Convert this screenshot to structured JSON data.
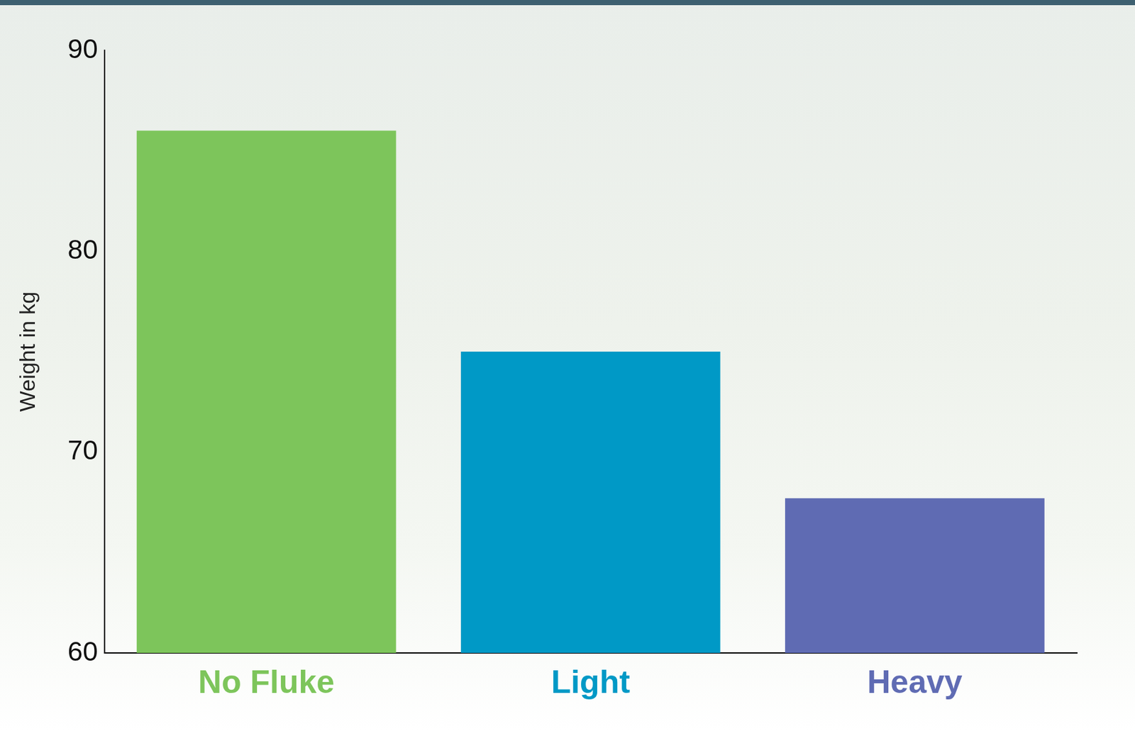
{
  "chart_data": {
    "type": "bar",
    "y_label": "Weight in kg",
    "categories": [
      "No Fluke",
      "Light",
      "Heavy"
    ],
    "values": [
      86,
      75,
      67.7
    ],
    "colors": [
      "#7dc55b",
      "#0099c6",
      "#5f6bb3"
    ],
    "ylim": [
      60,
      90
    ],
    "yticks": [
      60,
      70,
      80,
      90
    ],
    "grid": false
  }
}
